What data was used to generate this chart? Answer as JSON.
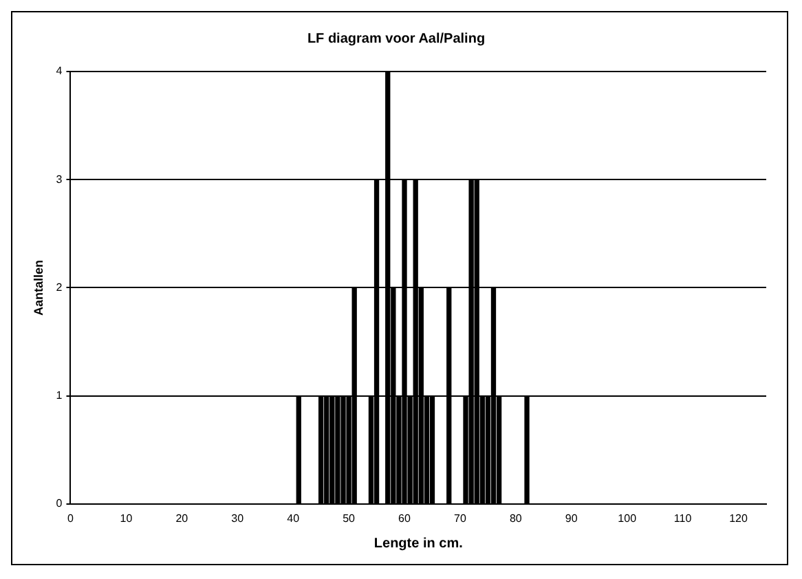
{
  "chart_data": {
    "type": "bar",
    "title": "LF diagram voor Aal/Paling",
    "xlabel": "Lengte in cm.",
    "ylabel": "Aantallen",
    "x": [
      41,
      45,
      46,
      47,
      48,
      49,
      50,
      51,
      54,
      55,
      57,
      58,
      59,
      60,
      61,
      62,
      63,
      64,
      65,
      68,
      71,
      72,
      73,
      74,
      75,
      76,
      77,
      82
    ],
    "values": [
      1,
      1,
      1,
      1,
      1,
      1,
      1,
      2,
      1,
      3,
      4,
      2,
      1,
      3,
      1,
      3,
      2,
      1,
      1,
      2,
      1,
      3,
      3,
      1,
      1,
      2,
      1,
      1
    ],
    "color": "#000000",
    "xlim": [
      0,
      125
    ],
    "xticks": [
      0,
      10,
      20,
      30,
      40,
      50,
      60,
      70,
      80,
      90,
      100,
      110,
      120
    ],
    "ylim": [
      0,
      4
    ],
    "yticks": [
      0,
      1,
      2,
      3,
      4
    ],
    "grid": "y",
    "legend": false
  }
}
